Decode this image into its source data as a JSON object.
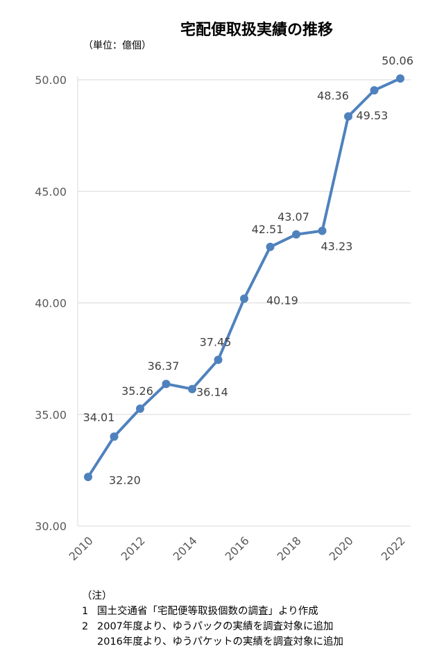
{
  "chart_data": {
    "type": "line",
    "title": "宅配便取扱実績の推移",
    "unit_label": "（単位：億個）",
    "x": [
      2010,
      2011,
      2012,
      2013,
      2014,
      2015,
      2016,
      2017,
      2018,
      2019,
      2020,
      2021,
      2022
    ],
    "x_tick_labels": [
      "2010",
      "2012",
      "2014",
      "2016",
      "2018",
      "2020",
      "2022"
    ],
    "x_tick_values": [
      2010,
      2012,
      2014,
      2016,
      2018,
      2020,
      2022
    ],
    "series": [
      {
        "values": [
          32.2,
          34.01,
          35.26,
          36.37,
          36.14,
          37.45,
          40.19,
          42.51,
          43.07,
          43.23,
          48.36,
          49.53,
          50.06
        ],
        "labels": [
          "32.20",
          "34.01",
          "35.26",
          "36.37",
          "36.14",
          "37.45",
          "40.19",
          "42.51",
          "43.07",
          "43.23",
          "48.36",
          "49.53",
          "50.06"
        ]
      }
    ],
    "ylim": [
      30,
      50
    ],
    "y_ticks": [
      30,
      35,
      40,
      45,
      50
    ],
    "y_tick_labels": [
      "30.00",
      "35.00",
      "40.00",
      "45.00",
      "50.00"
    ],
    "grid": true,
    "color": "#4f81bd"
  },
  "notes": {
    "header": "（注）",
    "items": [
      {
        "num": "1",
        "text": "国土交通省「宅配便等取扱個数の調査」より作成"
      },
      {
        "num": "2",
        "text": "2007年度より、ゆうパックの実績を調査対象に追加"
      }
    ],
    "continuation": "2016年度より、ゆうパケットの実績を調査対象に追加"
  }
}
